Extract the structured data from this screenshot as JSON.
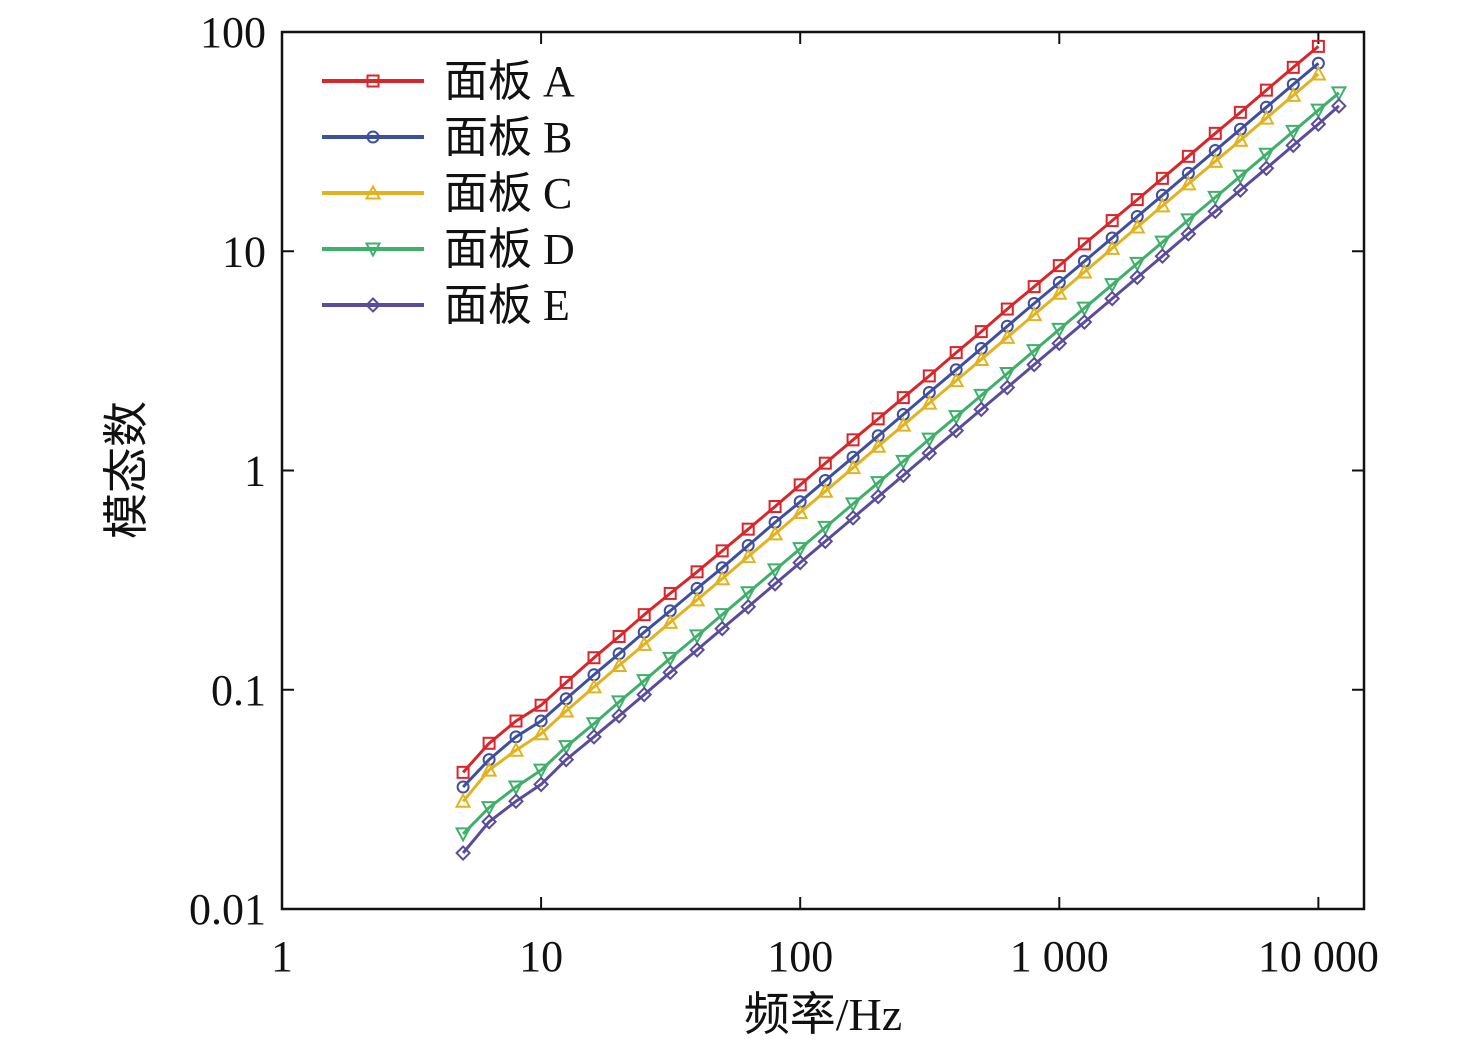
{
  "chart_data": {
    "type": "line",
    "title": "",
    "xlabel": "频率/Hz",
    "ylabel": "模态数",
    "x_scale": "log",
    "y_scale": "log",
    "xlim": [
      1,
      15000
    ],
    "ylim": [
      0.01,
      100
    ],
    "x_ticks": [
      1,
      10,
      100,
      1000,
      10000
    ],
    "x_tick_labels": [
      "1",
      "10",
      "100",
      "1 000",
      "10 000"
    ],
    "y_ticks": [
      0.01,
      0.1,
      1,
      10,
      100
    ],
    "y_tick_labels": [
      "0.01",
      "0.1",
      "1",
      "10",
      "100"
    ],
    "grid": false,
    "legend_position": "top-left",
    "series": [
      {
        "name": "面板 A",
        "color": "#d9262b",
        "marker": "square",
        "x": [
          5,
          6.3,
          8,
          10,
          12.5,
          16,
          20,
          25,
          31.5,
          40,
          50,
          63,
          80,
          100,
          125,
          160,
          200,
          250,
          315,
          400,
          500,
          630,
          800,
          1000,
          1250,
          1600,
          2000,
          2500,
          3150,
          4000,
          5000,
          6300,
          8000,
          10000
        ],
        "y": [
          0.042,
          0.057,
          0.072,
          0.085,
          0.108,
          0.14,
          0.175,
          0.22,
          0.275,
          0.345,
          0.43,
          0.54,
          0.685,
          0.86,
          1.08,
          1.38,
          1.72,
          2.15,
          2.7,
          3.45,
          4.3,
          5.45,
          6.9,
          8.6,
          10.8,
          13.8,
          17.2,
          21.5,
          27.1,
          34.5,
          43.0,
          54.3,
          69.0,
          86.0
        ]
      },
      {
        "name": "面板 B",
        "color": "#3e4fa1",
        "marker": "circle",
        "x": [
          5,
          6.3,
          8,
          10,
          12.5,
          16,
          20,
          25,
          31.5,
          40,
          50,
          63,
          80,
          100,
          125,
          160,
          200,
          250,
          315,
          400,
          500,
          630,
          800,
          1000,
          1250,
          1600,
          2000,
          2500,
          3150,
          4000,
          5000,
          6300,
          8000,
          10000
        ],
        "y": [
          0.036,
          0.048,
          0.061,
          0.072,
          0.091,
          0.117,
          0.146,
          0.183,
          0.229,
          0.29,
          0.36,
          0.455,
          0.58,
          0.72,
          0.9,
          1.15,
          1.44,
          1.8,
          2.27,
          2.88,
          3.6,
          4.55,
          5.78,
          7.2,
          9.0,
          11.5,
          14.4,
          18.0,
          22.7,
          28.8,
          36.0,
          45.4,
          57.7,
          72.0
        ]
      },
      {
        "name": "面板 C",
        "color": "#e3b21f",
        "marker": "triangle-up",
        "x": [
          5,
          6.3,
          8,
          10,
          12.5,
          16,
          20,
          25,
          31.5,
          40,
          50,
          63,
          80,
          100,
          125,
          160,
          200,
          250,
          315,
          400,
          500,
          630,
          800,
          1000,
          1250,
          1600,
          2000,
          2500,
          3150,
          4000,
          5000,
          6300,
          8000,
          10000
        ],
        "y": [
          0.031,
          0.043,
          0.053,
          0.063,
          0.08,
          0.103,
          0.129,
          0.161,
          0.203,
          0.257,
          0.321,
          0.405,
          0.514,
          0.643,
          0.804,
          1.03,
          1.29,
          1.61,
          2.03,
          2.57,
          3.21,
          4.05,
          5.14,
          6.43,
          8.04,
          10.3,
          12.9,
          16.1,
          20.3,
          25.7,
          32.1,
          40.5,
          51.4,
          64.3
        ]
      },
      {
        "name": "面板 D",
        "color": "#3fb06a",
        "marker": "triangle-down",
        "x": [
          5,
          6.3,
          8,
          10,
          12.5,
          16,
          20,
          25,
          31.5,
          40,
          50,
          63,
          80,
          100,
          125,
          160,
          200,
          250,
          315,
          400,
          500,
          630,
          800,
          1000,
          1250,
          1600,
          2000,
          2500,
          3150,
          4000,
          5000,
          6300,
          8000,
          10000,
          12000
        ],
        "y": [
          0.022,
          0.029,
          0.036,
          0.043,
          0.055,
          0.07,
          0.088,
          0.11,
          0.139,
          0.176,
          0.22,
          0.277,
          0.352,
          0.44,
          0.55,
          0.704,
          0.88,
          1.1,
          1.39,
          1.76,
          2.2,
          2.77,
          3.52,
          4.4,
          5.5,
          7.04,
          8.8,
          11.0,
          13.9,
          17.6,
          22.0,
          27.7,
          35.2,
          44.0,
          52.8
        ]
      },
      {
        "name": "面板 E",
        "color": "#5a4b9c",
        "marker": "diamond",
        "x": [
          5,
          6.3,
          8,
          10,
          12.5,
          16,
          20,
          25,
          31.5,
          40,
          50,
          63,
          80,
          100,
          125,
          160,
          200,
          250,
          315,
          400,
          500,
          630,
          800,
          1000,
          1250,
          1600,
          2000,
          2500,
          3150,
          4000,
          5000,
          6300,
          8000,
          10000,
          12000
        ],
        "y": [
          0.018,
          0.025,
          0.031,
          0.037,
          0.048,
          0.061,
          0.076,
          0.095,
          0.12,
          0.152,
          0.19,
          0.239,
          0.304,
          0.38,
          0.475,
          0.608,
          0.76,
          0.95,
          1.2,
          1.52,
          1.9,
          2.39,
          3.04,
          3.8,
          4.75,
          6.08,
          7.6,
          9.5,
          12.0,
          15.2,
          19.0,
          23.9,
          30.4,
          38.0,
          46.0
        ]
      }
    ]
  }
}
